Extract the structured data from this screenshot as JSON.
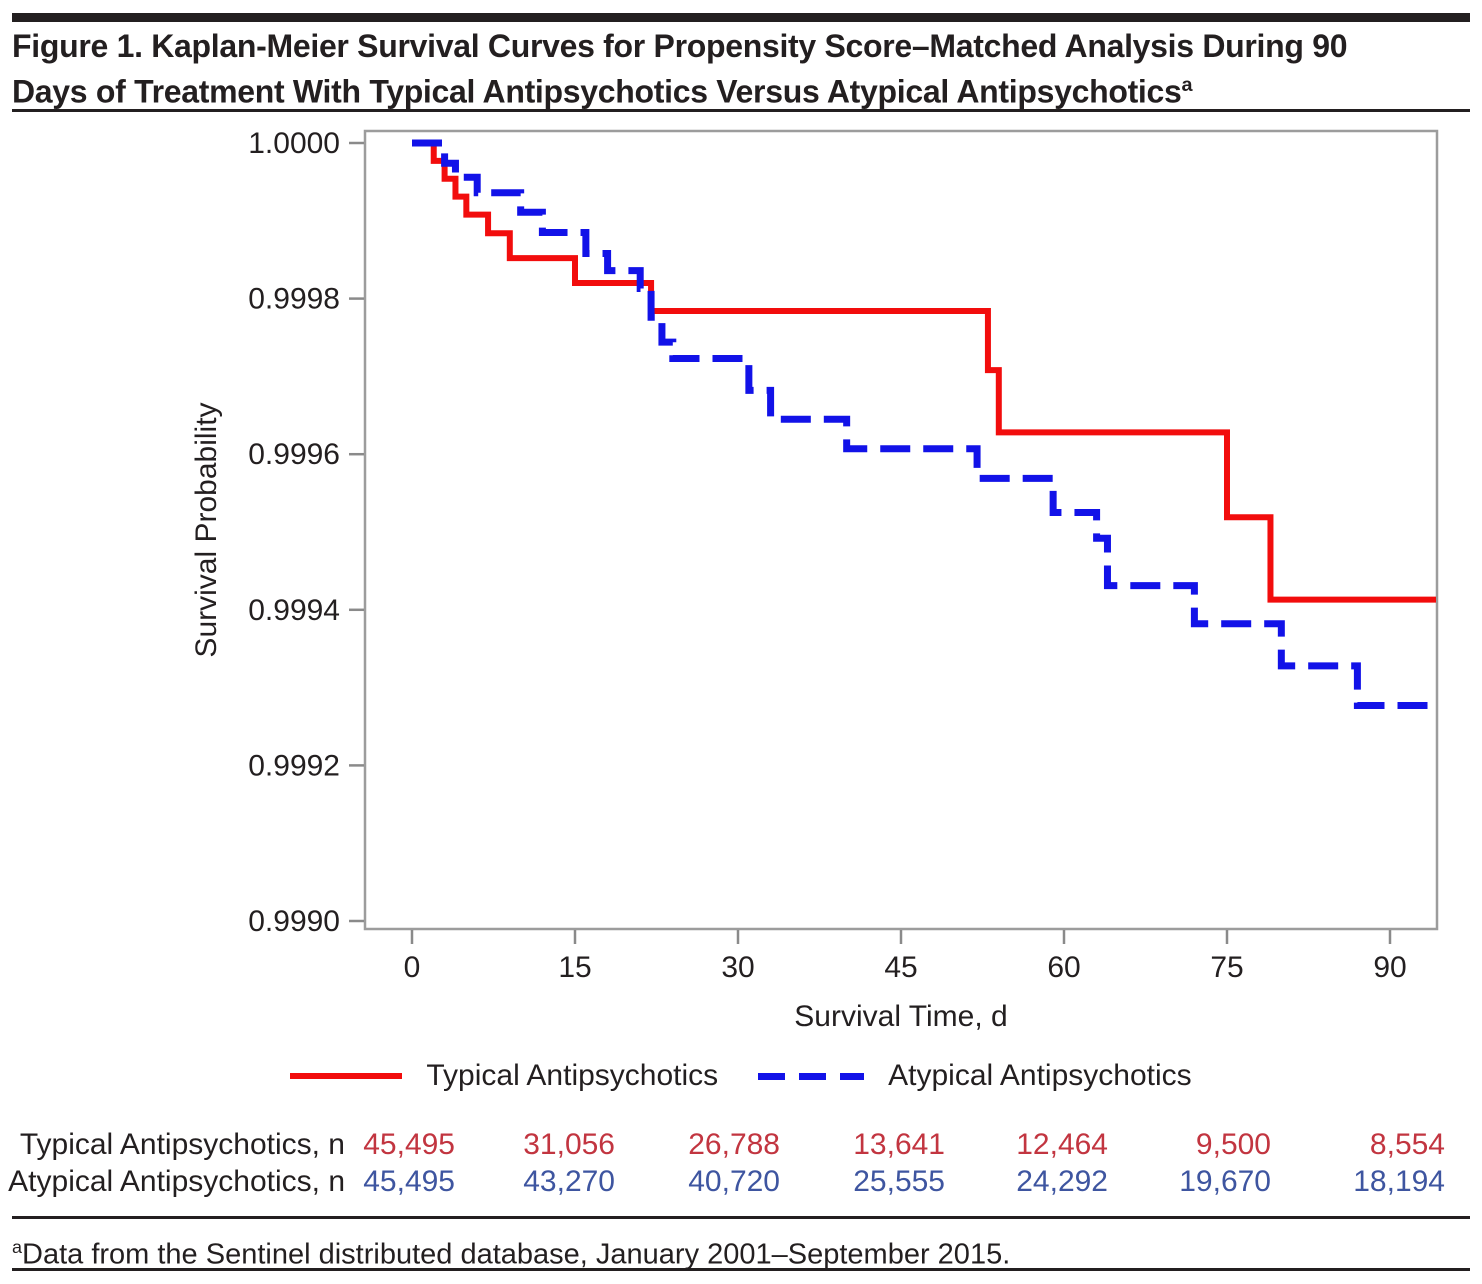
{
  "figure": {
    "title_line1": "Figure 1. Kaplan-Meier Survival Curves for Propensity Score–Matched Analysis During 90",
    "title_line2": "Days of Treatment With Typical Antipsychotics Versus Atypical Antipsychotics",
    "title_superscript": "a",
    "footnote_superscript": "a",
    "footnote_text": "Data from the Sentinel distributed database, January 2001–September 2015."
  },
  "chart_data": {
    "type": "line",
    "subtype": "kaplan-meier-step",
    "title": "",
    "xlabel": "Survival Time, d",
    "ylabel": "Survival Probability",
    "x_ticks": [
      0,
      15,
      30,
      45,
      60,
      75,
      90
    ],
    "y_tick_labels": [
      "1.0000",
      "0.9998",
      "0.9996",
      "0.9994",
      "0.9992",
      "0.9990"
    ],
    "xlim": [
      0,
      94
    ],
    "ylim": [
      0.999,
      1.0
    ],
    "grid": false,
    "legend_position": "bottom-center",
    "series": [
      {
        "name": "Typical Antipsychotics",
        "color": "#f20d0d",
        "style": "solid",
        "points": [
          [
            0,
            1.0
          ],
          [
            2,
            0.999977
          ],
          [
            3,
            0.999954
          ],
          [
            4,
            0.999931
          ],
          [
            5,
            0.999908
          ],
          [
            7,
            0.999884
          ],
          [
            9,
            0.999852
          ],
          [
            15,
            0.99982
          ],
          [
            22,
            0.999784
          ],
          [
            53,
            0.999708
          ],
          [
            54,
            0.999628
          ],
          [
            75,
            0.999519
          ],
          [
            79,
            0.999413
          ]
        ]
      },
      {
        "name": "Atypical Antipsychotics",
        "color": "#1212e8",
        "style": "dashed",
        "points": [
          [
            0,
            1.0
          ],
          [
            3,
            0.999974
          ],
          [
            4,
            0.999956
          ],
          [
            6,
            0.999936
          ],
          [
            10,
            0.999911
          ],
          [
            12,
            0.999885
          ],
          [
            16,
            0.999858
          ],
          [
            18,
            0.999836
          ],
          [
            21,
            0.999813
          ],
          [
            22,
            0.999776
          ],
          [
            23,
            0.999744
          ],
          [
            24,
            0.999723
          ],
          [
            31,
            0.999682
          ],
          [
            33,
            0.999645
          ],
          [
            40,
            0.999607
          ],
          [
            52,
            0.999569
          ],
          [
            59,
            0.999525
          ],
          [
            63,
            0.999492
          ],
          [
            64,
            0.999431
          ],
          [
            72,
            0.999382
          ],
          [
            80,
            0.999328
          ],
          [
            87,
            0.999277
          ]
        ]
      }
    ]
  },
  "legend": {
    "items": [
      {
        "label": "Typical Antipsychotics",
        "line": "solid",
        "color": "#f20d0d"
      },
      {
        "label": "Atypical Antipsychotics",
        "line": "dashed",
        "color": "#1212e8"
      }
    ]
  },
  "risk_table": {
    "columns_at_days": [
      0,
      15,
      30,
      45,
      60,
      75,
      90
    ],
    "rows": [
      {
        "label": "Typical Antipsychotics, n",
        "color": "#c23540",
        "values": [
          "45,495",
          "31,056",
          "26,788",
          "13,641",
          "12,464",
          "9,500",
          "8,554"
        ]
      },
      {
        "label": "Atypical Antipsychotics, n",
        "color": "#3e55a0",
        "values": [
          "45,495",
          "43,270",
          "40,720",
          "25,555",
          "24,292",
          "19,670",
          "18,194"
        ]
      }
    ]
  }
}
